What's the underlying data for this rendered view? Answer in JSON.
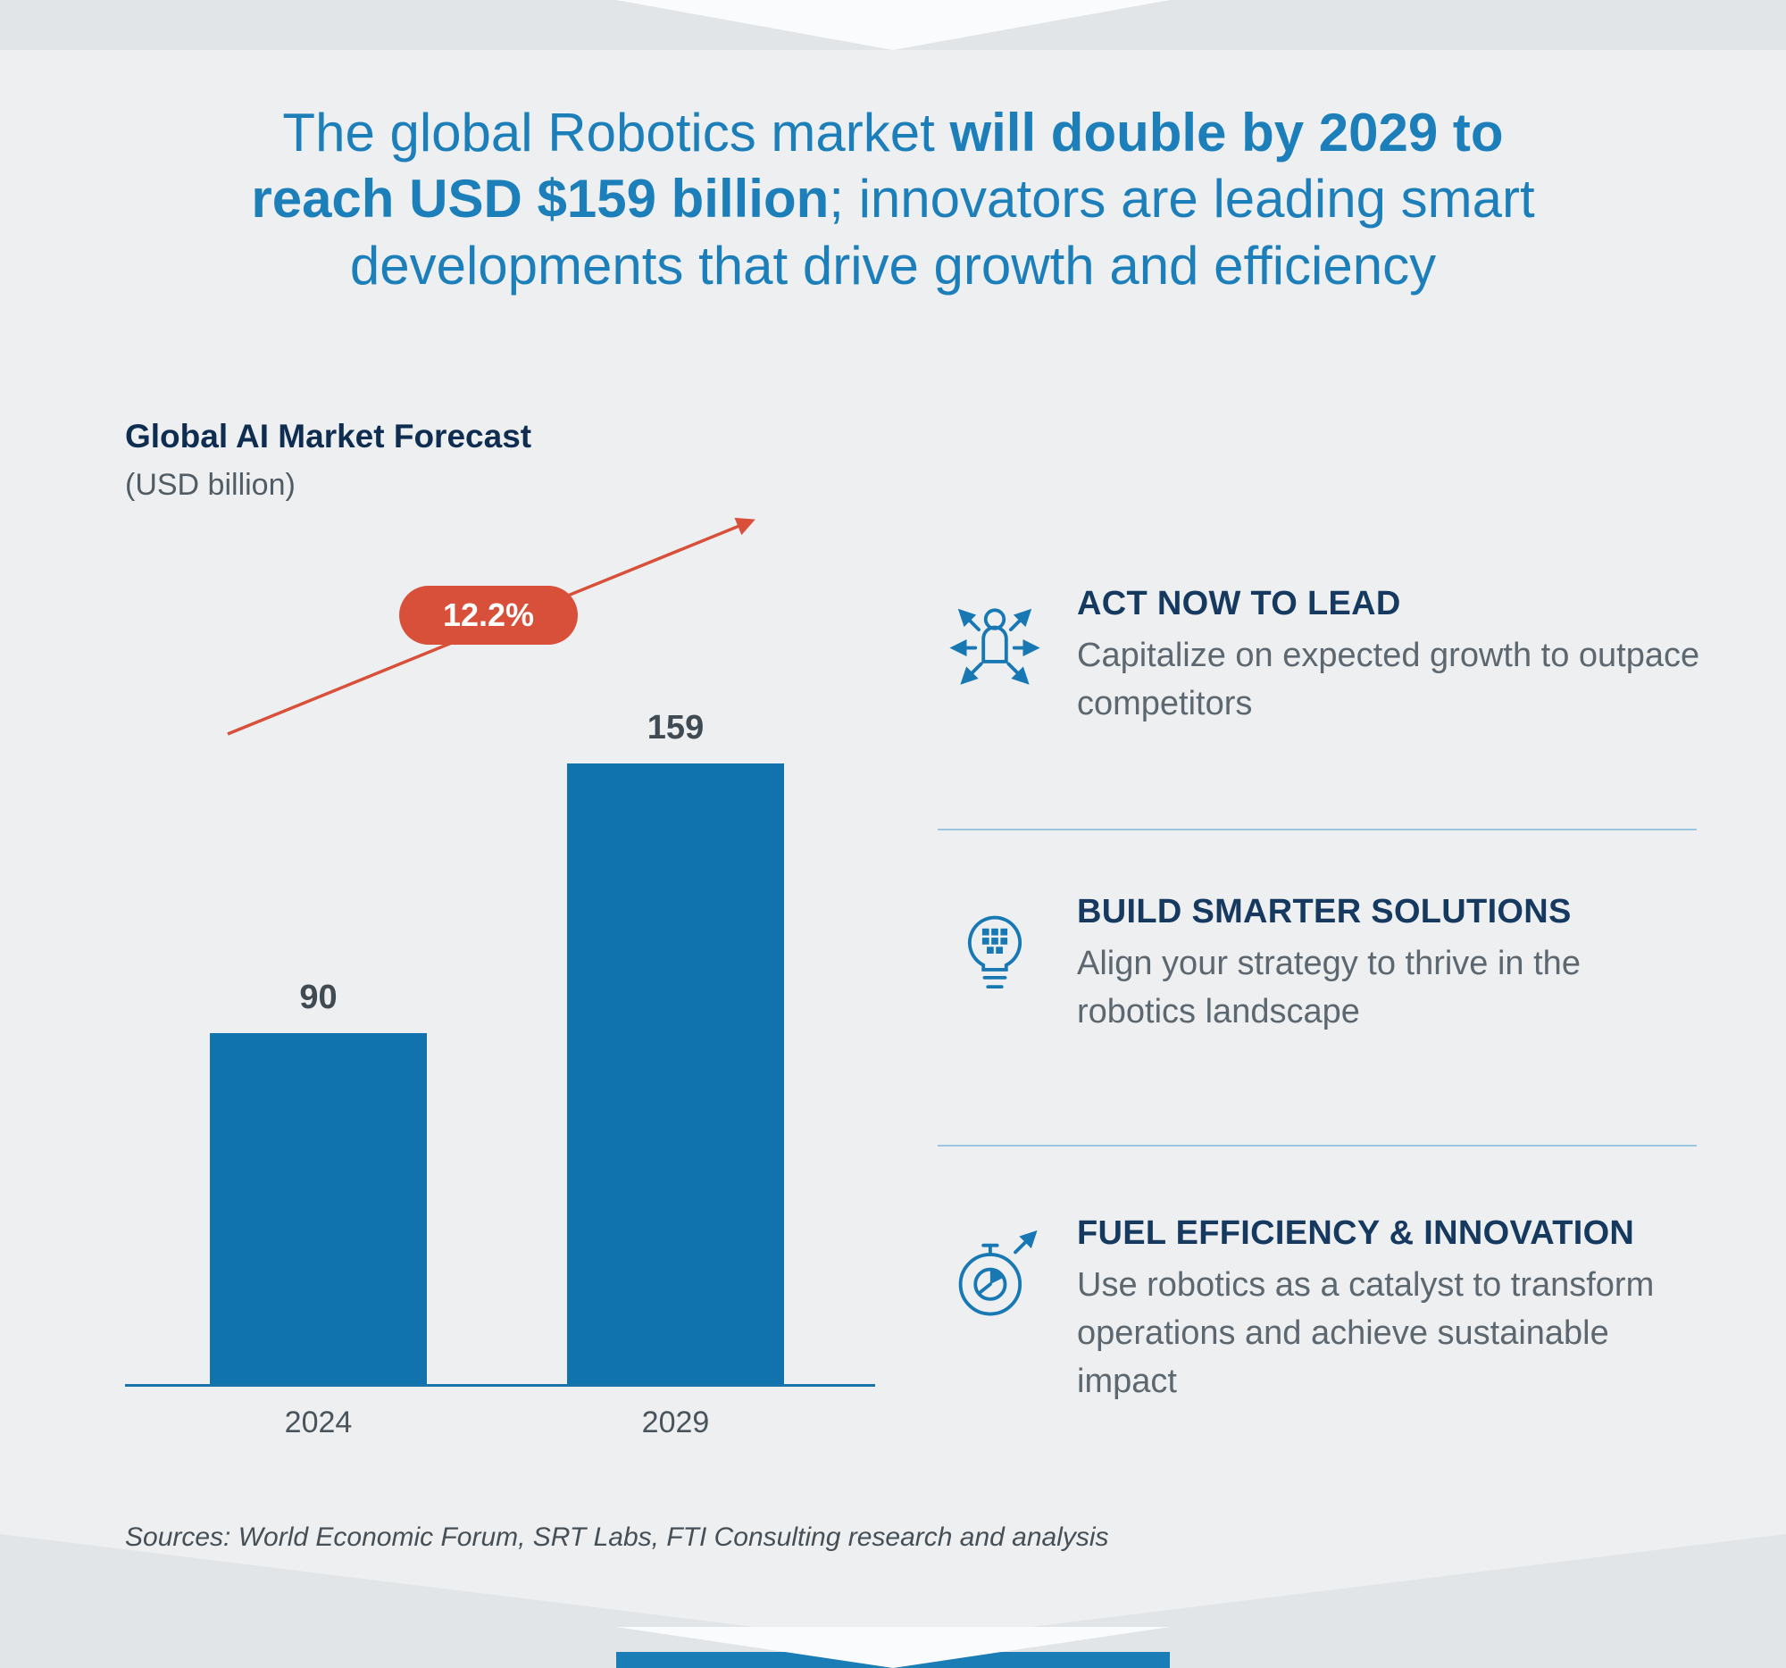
{
  "title": {
    "pre": "The global Robotics market ",
    "bold": "will double by 2029 to reach USD $159 billion",
    "post": "; innovators are leading smart developments that drive growth and efficiency"
  },
  "chart_data": {
    "type": "bar",
    "title": "Global AI Market Forecast",
    "subtitle": "(USD billion)",
    "categories": [
      "2024",
      "2029"
    ],
    "values": [
      90,
      159
    ],
    "growth_badge": "12.2%",
    "ylim": [
      0,
      180
    ],
    "grid": false,
    "legend": false,
    "bar_color": "#1173ad",
    "arrow_color": "#d8503a"
  },
  "insights": [
    {
      "icon": "person-arrows-icon",
      "heading": "ACT NOW TO LEAD",
      "body": "Capitalize on expected growth to outpace competitors"
    },
    {
      "icon": "lightbulb-circuit-icon",
      "heading": "BUILD SMARTER SOLUTIONS",
      "body": "Align your strategy to thrive in the robotics landscape"
    },
    {
      "icon": "stopwatch-pie-icon",
      "heading": "FUEL EFFICIENCY & INNOVATION",
      "body": "Use robotics as a catalyst to transform operations and achieve sustainable impact"
    }
  ],
  "footer": {
    "sources": "Sources: World Economic Forum, SRT Labs, FTI Consulting research and analysis"
  },
  "colors": {
    "title_blue": "#1d7fba",
    "navy": "#16395f",
    "bar_blue": "#1173ad",
    "accent_red": "#d8503a",
    "body_gray": "#5d676f",
    "background": "#edeff1"
  }
}
